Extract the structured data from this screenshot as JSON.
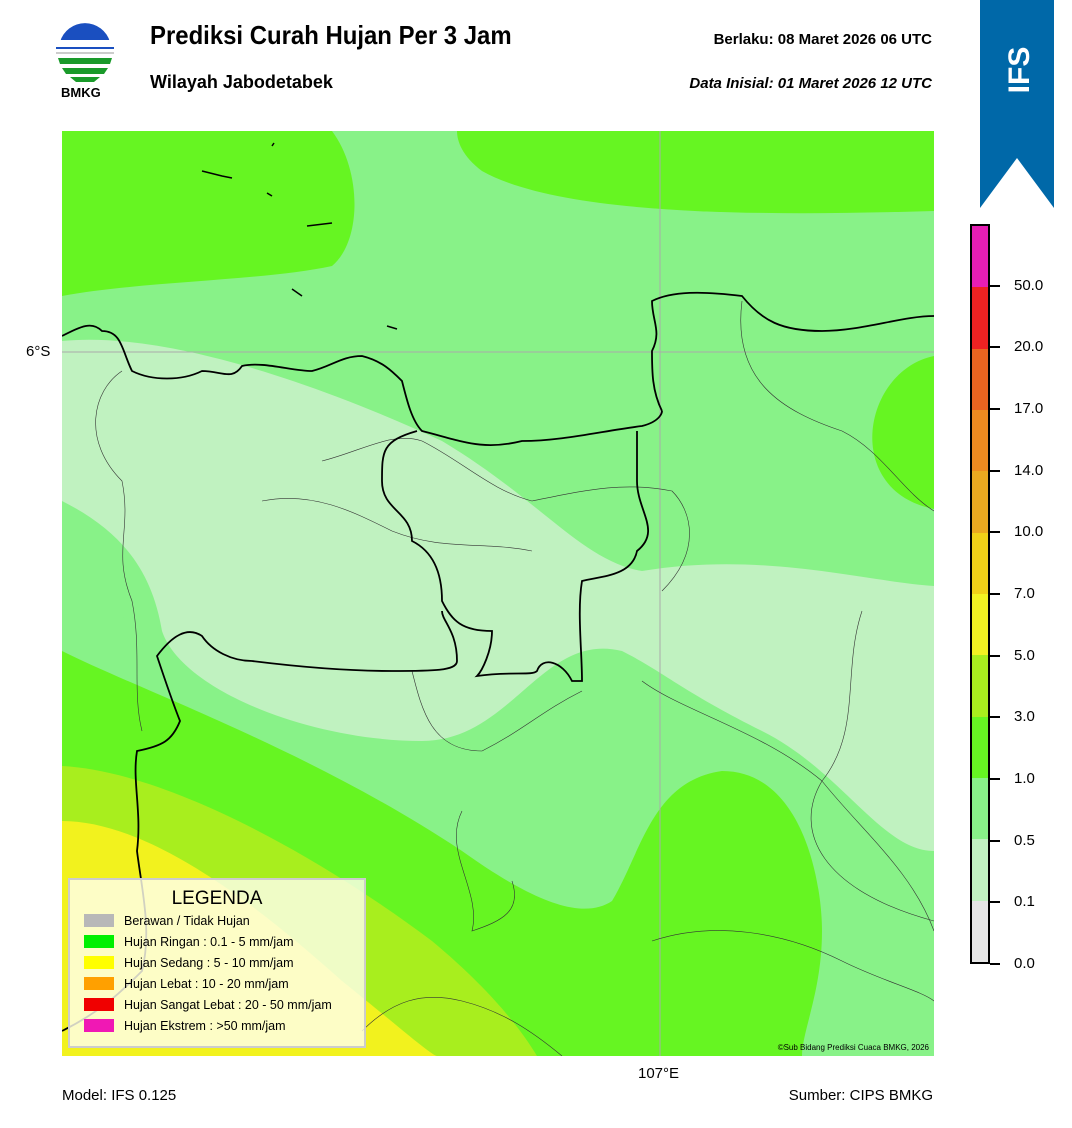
{
  "header": {
    "logo_text": "BMKG",
    "title": "Prediksi Curah Hujan Per 3 Jam",
    "subtitle": "Wilayah Jabodetabek",
    "valid": "Berlaku:  08 Maret 2026 06 UTC",
    "initial": "Data Inisial:  01 Maret 2026 12 UTC",
    "badge": "IFS",
    "badge_color": "#0068a8"
  },
  "map": {
    "lat_label": "6°S",
    "lon_label": "107°E",
    "credit": "©Sub Bidang Prediksi Cuaca BMKG, 2026"
  },
  "legend": {
    "title": "LEGENDA",
    "items": [
      {
        "label": "Berawan / Tidak Hujan",
        "color": "#b8b8b8"
      },
      {
        "label": "Hujan Ringan : 0.1 - 5 mm/jam",
        "color": "#00f000"
      },
      {
        "label": "Hujan Sedang : 5 - 10 mm/jam",
        "color": "#ffff00"
      },
      {
        "label": "Hujan Lebat : 10 - 20 mm/jam",
        "color": "#ffa000"
      },
      {
        "label": "Hujan Sangat Lebat : 20 - 50 mm/jam",
        "color": "#f00000"
      },
      {
        "label": "Hujan Ekstrem : >50 mm/jam",
        "color": "#f018b4"
      }
    ]
  },
  "colorbar": {
    "colors": [
      "#e61eb4",
      "#ee2222",
      "#ea6420",
      "#ee8a20",
      "#eaa820",
      "#f0d018",
      "#f2f222",
      "#a8ee1e",
      "#66f522",
      "#88f288",
      "#c0f2c0",
      "#e6e6e6"
    ],
    "ticks": [
      "50.0",
      "20.0",
      "17.0",
      "14.0",
      "10.0",
      "7.0",
      "5.0",
      "3.0",
      "1.0",
      "0.5",
      "0.1",
      "0.0"
    ]
  },
  "footer": {
    "model": "Model: IFS 0.125",
    "source": "Sumber: CIPS BMKG"
  }
}
